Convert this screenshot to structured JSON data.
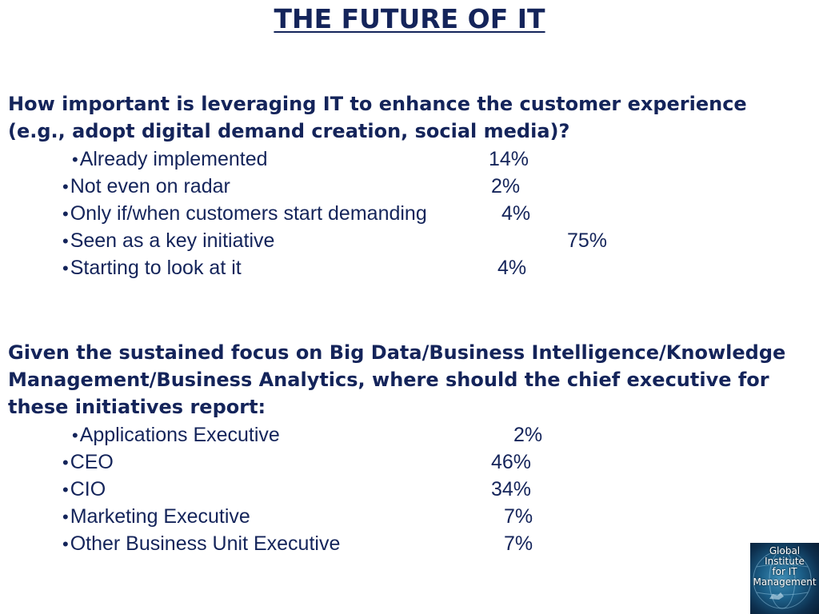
{
  "title": "THE FUTURE OF IT",
  "question1": {
    "text": "How important is leveraging IT to enhance the customer experience (e.g., adopt digital demand creation, social media)?",
    "items": [
      {
        "label": "Already implemented",
        "value": "14%"
      },
      {
        "label": "Not even on radar",
        "value": "2%"
      },
      {
        "label": "Only if/when customers start demanding",
        "value": "4%"
      },
      {
        "label": "Seen as a key initiative",
        "value": "75%"
      },
      {
        "label": "Starting to look at it",
        "value": "4%"
      }
    ]
  },
  "question2": {
    "text": "Given the sustained focus on Big Data/Business Intelligence/Knowledge Management/Business Analytics, where should the chief executive for these initiatives report:",
    "items": [
      {
        "label": "Applications Executive",
        "value": "2%"
      },
      {
        "label": "CEO",
        "value": "46%"
      },
      {
        "label": "CIO",
        "value": "34%"
      },
      {
        "label": "Marketing Executive",
        "value": "7%"
      },
      {
        "label": "Other Business Unit Executive",
        "value": "7%"
      }
    ]
  },
  "logo": {
    "lines": [
      "Global",
      "Institute",
      "for IT",
      "Management"
    ],
    "icon": "globe-icon"
  },
  "bullet_glyph": "•"
}
